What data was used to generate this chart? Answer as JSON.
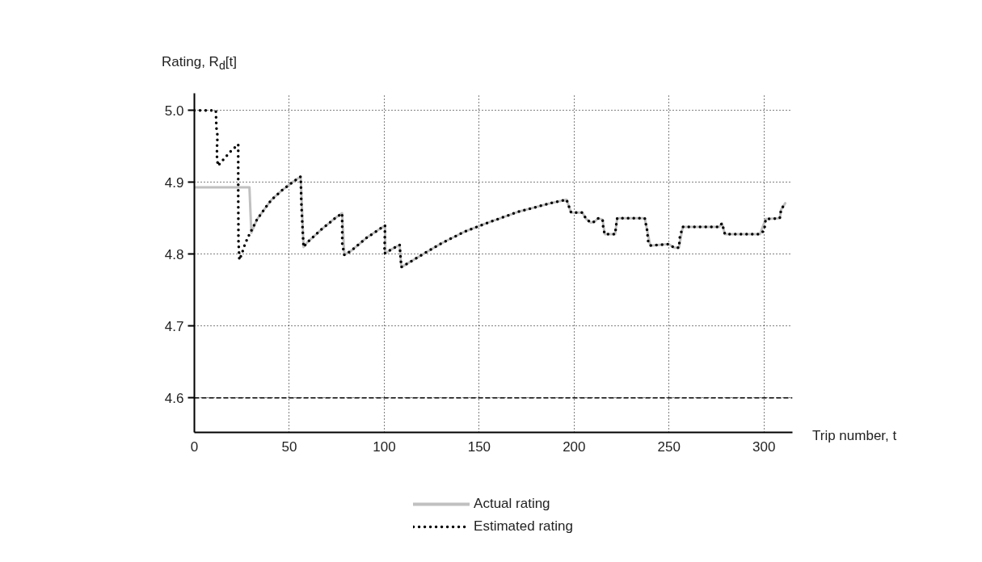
{
  "chart_data": {
    "type": "line",
    "xlabel": "Trip number, t",
    "ylabel": "Rating, R$_{d}$[t]",
    "xlim": [
      0,
      315
    ],
    "ylim": [
      4.552,
      5.024
    ],
    "xticks": [
      0,
      50,
      100,
      150,
      200,
      250,
      300
    ],
    "yticks": [
      4.6,
      4.7,
      4.8,
      4.9,
      {
        "value": 5.0,
        "label": "5.0"
      }
    ],
    "grid": true,
    "legend": "bottom",
    "ref_lines": [
      {
        "axis": "y",
        "value": 4.6,
        "line_style": "dashed",
        "color": "#000000"
      }
    ],
    "series": [
      {
        "name": "Actual rating",
        "color": "#c0c0c0",
        "line_style": "solid",
        "x": [
          0,
          29,
          30,
          32.9,
          37.8,
          40.7,
          46.2,
          52.6,
          56,
          57.5,
          59.3,
          66.7,
          74,
          77.8,
          79,
          82.7,
          90.8,
          100.4,
          100.6,
          104,
          108.1,
          109,
          121,
          130,
          142,
          152.7,
          170.5,
          187.6,
          196,
          198.4,
          204.3,
          206.4,
          208.7,
          210.5,
          212.7,
          215,
          216.1,
          221.6,
          222.7,
          237.2,
          240.1,
          249.8,
          252.7,
          255.2,
          257.2,
          276.4,
          277.9,
          279.4,
          297.9,
          300.9,
          308.3,
          309,
          311.2
        ],
        "values": [
          4.893,
          4.893,
          4.83,
          4.848,
          4.866,
          4.876,
          4.889,
          4.902,
          4.908,
          4.81,
          4.816,
          4.834,
          4.85,
          4.857,
          4.799,
          4.805,
          4.823,
          4.84,
          4.801,
          4.807,
          4.813,
          4.782,
          4.801,
          4.815,
          4.831,
          4.842,
          4.859,
          4.871,
          4.876,
          4.858,
          4.858,
          4.849,
          4.844,
          4.845,
          4.85,
          4.848,
          4.828,
          4.828,
          4.85,
          4.85,
          4.812,
          4.814,
          4.809,
          4.809,
          4.838,
          4.838,
          4.843,
          4.828,
          4.828,
          4.849,
          4.85,
          4.862,
          4.871
        ]
      },
      {
        "name": "Estimated rating",
        "color": "#000000",
        "line_style": "dotted",
        "x": [
          0,
          4.3,
          9,
          11.3,
          11.6,
          12.2,
          11.9,
          11.9,
          12.4,
          15.7,
          19.1,
          23.1,
          23.1,
          23.1,
          23.2,
          23.2,
          23.7,
          24.9,
          26.4,
          28.1,
          32.9,
          37.8,
          40.7,
          46.2,
          52.6,
          56,
          56.3,
          57,
          57.5,
          59.3,
          66.7,
          74,
          77.8,
          77.9,
          79,
          82.7,
          90.8,
          100.4,
          100.1,
          104,
          108.1,
          109,
          121,
          130,
          142,
          152.7,
          170.5,
          187.6,
          196,
          198.4,
          204.3,
          206.4,
          208.7,
          210.5,
          212.7,
          215,
          215.3,
          216.1,
          221.6,
          222,
          222.7,
          237.2,
          238.4,
          239,
          240.1,
          249.8,
          252.7,
          255.2,
          255.7,
          257.2,
          276.4,
          277.9,
          279.4,
          297.9,
          300.1,
          300.9,
          308.3,
          309,
          311.2
        ],
        "values": [
          5.0,
          5.0,
          5.0,
          5.0,
          4.976,
          4.965,
          4.948,
          4.936,
          4.923,
          4.933,
          4.943,
          4.953,
          4.919,
          4.881,
          4.841,
          4.82,
          4.792,
          4.8,
          4.812,
          4.823,
          4.848,
          4.866,
          4.876,
          4.889,
          4.902,
          4.908,
          4.873,
          4.835,
          4.81,
          4.816,
          4.834,
          4.85,
          4.857,
          4.814,
          4.799,
          4.805,
          4.823,
          4.84,
          4.801,
          4.807,
          4.813,
          4.782,
          4.801,
          4.815,
          4.831,
          4.842,
          4.859,
          4.871,
          4.876,
          4.858,
          4.858,
          4.849,
          4.844,
          4.845,
          4.85,
          4.848,
          4.838,
          4.828,
          4.828,
          4.838,
          4.85,
          4.85,
          4.834,
          4.818,
          4.812,
          4.814,
          4.809,
          4.809,
          4.824,
          4.838,
          4.838,
          4.843,
          4.828,
          4.828,
          4.833,
          4.849,
          4.85,
          4.862,
          4.871
        ]
      }
    ]
  }
}
